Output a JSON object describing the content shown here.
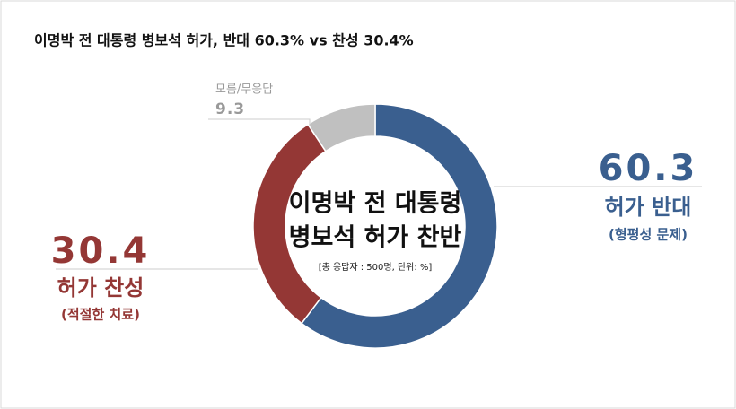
{
  "chart_data": {
    "type": "donut",
    "title": "이명박 전 대통령 병보석 허가, 반대 60.3% vs 찬성 30.4%",
    "center_title": [
      "이명박 전 대통령",
      "병보석 허가 찬반"
    ],
    "note": "[총 응답자 : 500명, 단위: %]",
    "categories": [
      "허가 반대",
      "허가 찬성",
      "모름/무응답"
    ],
    "sublabels": [
      "(형평성 문제)",
      "(적절한 치료)",
      null
    ],
    "values": [
      60.3,
      30.4,
      9.3
    ],
    "colors": [
      "#3a5f8f",
      "#943735",
      "#c0c0c0"
    ]
  }
}
